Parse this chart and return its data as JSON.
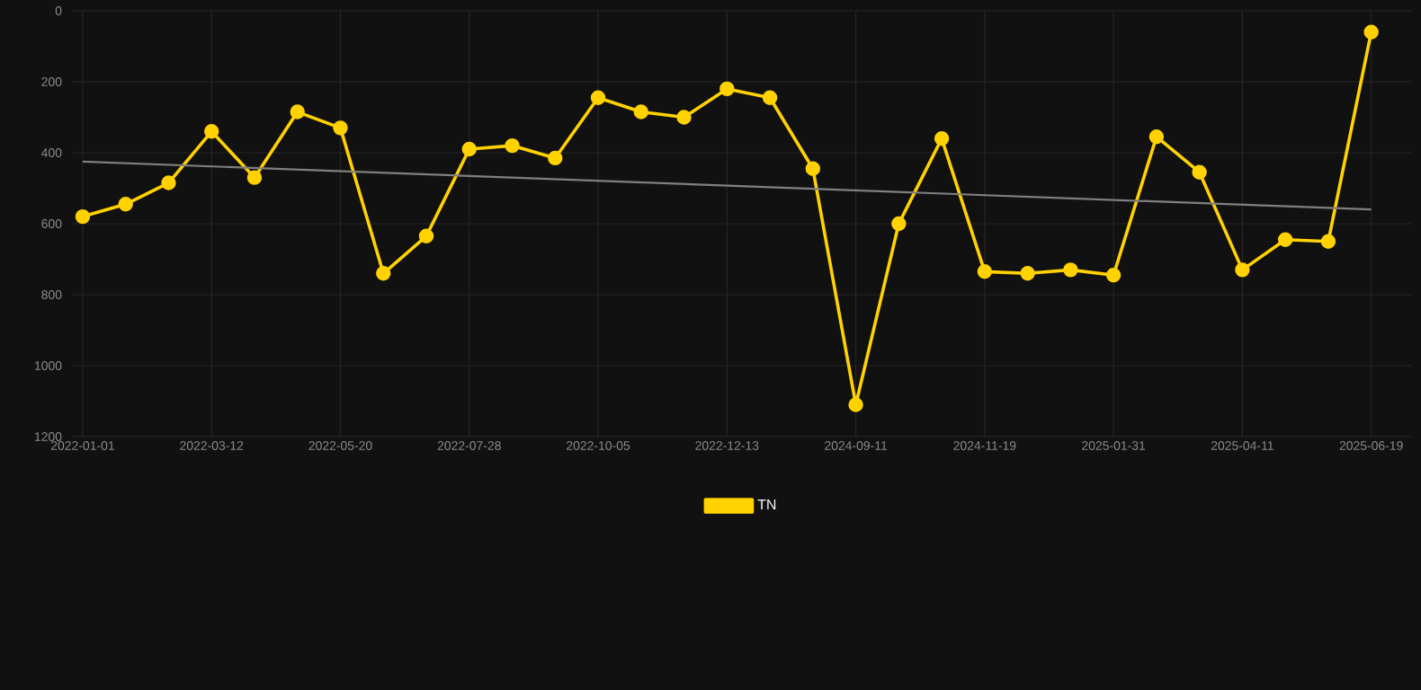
{
  "chart_data": {
    "type": "line",
    "categories": [
      "2022-01-01",
      null,
      null,
      "2022-03-12",
      null,
      null,
      "2022-05-20",
      null,
      null,
      "2022-07-28",
      null,
      null,
      "2022-10-05",
      null,
      null,
      "2022-12-13",
      null,
      null,
      "2024-09-11",
      null,
      null,
      "2024-11-19",
      null,
      null,
      "2025-01-31",
      null,
      null,
      "2025-04-11",
      null,
      null,
      "2025-06-19"
    ],
    "series": [
      {
        "name": "TN",
        "color": "#ffd200",
        "values": [
          580,
          545,
          485,
          340,
          470,
          285,
          330,
          740,
          635,
          390,
          380,
          415,
          245,
          285,
          300,
          220,
          245,
          445,
          1110,
          600,
          360,
          735,
          740,
          730,
          745,
          355,
          455,
          730,
          645,
          650,
          60
        ]
      },
      {
        "color": "#808080",
        "marker": "none",
        "values": [
          425,
          null,
          null,
          null,
          null,
          null,
          null,
          null,
          null,
          null,
          null,
          null,
          null,
          null,
          null,
          null,
          null,
          null,
          null,
          null,
          null,
          null,
          null,
          null,
          null,
          null,
          null,
          null,
          null,
          null,
          560
        ]
      }
    ],
    "ylim": [
      1200,
      0
    ],
    "yticks": [
      0,
      200,
      400,
      600,
      800,
      1000,
      1200
    ],
    "grid": true,
    "legend": "bottom",
    "marker": "circle",
    "line_style": "solid"
  }
}
